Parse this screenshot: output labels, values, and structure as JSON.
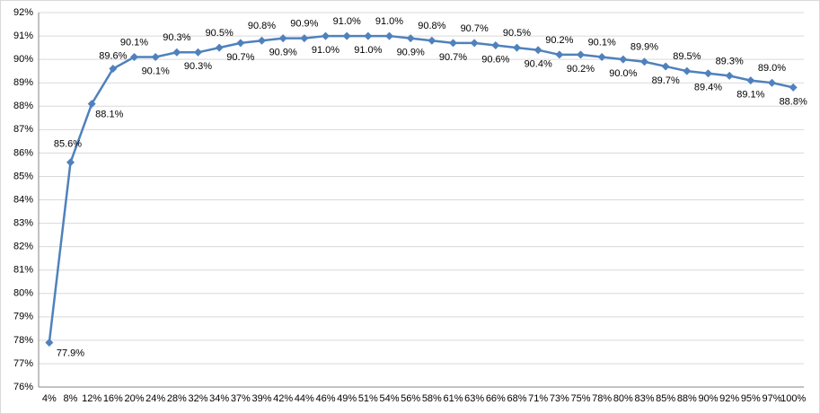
{
  "chart_data": {
    "type": "line",
    "categories": [
      "4%",
      "8%",
      "12%",
      "16%",
      "20%",
      "24%",
      "28%",
      "32%",
      "34%",
      "37%",
      "39%",
      "42%",
      "44%",
      "46%",
      "49%",
      "51%",
      "54%",
      "56%",
      "58%",
      "61%",
      "63%",
      "66%",
      "68%",
      "71%",
      "73%",
      "75%",
      "78%",
      "80%",
      "83%",
      "85%",
      "88%",
      "90%",
      "92%",
      "95%",
      "97%",
      "100%"
    ],
    "series": [
      {
        "color": "#4f81bd",
        "values": [
          77.9,
          85.6,
          88.1,
          89.6,
          90.1,
          90.1,
          90.3,
          90.3,
          90.5,
          90.7,
          90.8,
          90.9,
          90.9,
          91.0,
          91.0,
          91.0,
          91.0,
          90.9,
          90.8,
          90.7,
          90.7,
          90.6,
          90.5,
          90.4,
          90.2,
          90.2,
          90.1,
          90.0,
          89.9,
          89.7,
          89.5,
          89.4,
          89.3,
          89.1,
          89.0,
          88.8
        ],
        "value_labels": [
          "77.9%",
          "85.6%",
          "88.1%",
          "89.6%",
          "90.1%",
          "90.1%",
          "90.3%",
          "90.3%",
          "90.5%",
          "90.7%",
          "90.8%",
          "90.9%",
          "90.9%",
          "91.0%",
          "91.0%",
          "91.0%",
          "91.0%",
          "90.9%",
          "90.8%",
          "90.7%",
          "90.7%",
          "90.6%",
          "90.5%",
          "90.4%",
          "90.2%",
          "90.2%",
          "90.1%",
          "90.0%",
          "89.9%",
          "89.7%",
          "89.5%",
          "89.4%",
          "89.3%",
          "89.1%",
          "89.0%",
          "88.8%"
        ]
      }
    ],
    "ylim": [
      76,
      92
    ],
    "yticks": [
      {
        "value": 76,
        "label": "76%"
      },
      {
        "value": 77,
        "label": "77%"
      },
      {
        "value": 78,
        "label": "78%"
      },
      {
        "value": 79,
        "label": "79%"
      },
      {
        "value": 80,
        "label": "80%"
      },
      {
        "value": 81,
        "label": "81%"
      },
      {
        "value": 82,
        "label": "82%"
      },
      {
        "value": 83,
        "label": "83%"
      },
      {
        "value": 84,
        "label": "84%"
      },
      {
        "value": 85,
        "label": "85%"
      },
      {
        "value": 86,
        "label": "86%"
      },
      {
        "value": 87,
        "label": "87%"
      },
      {
        "value": 88,
        "label": "88%"
      },
      {
        "value": 89,
        "label": "89%"
      },
      {
        "value": 90,
        "label": "90%"
      },
      {
        "value": 91,
        "label": "91%"
      },
      {
        "value": 92,
        "label": "92%"
      }
    ],
    "grid": true
  }
}
